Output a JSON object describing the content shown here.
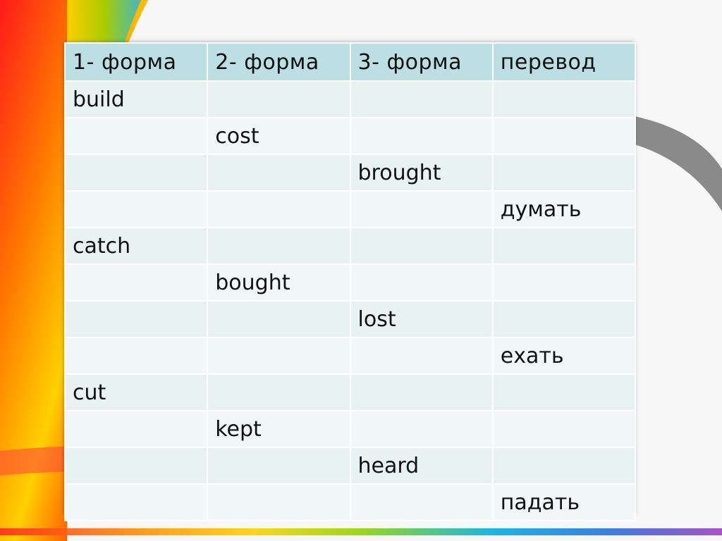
{
  "colors": {
    "header_bg": "#bcdfe3",
    "row_bg": "#e8f2f3",
    "row_alt_bg": "#f1f7f8",
    "text": "#111111"
  },
  "table": {
    "headers": [
      "1- форма",
      "2- форма",
      "3- форма",
      "перевод"
    ],
    "rows": [
      [
        "build",
        "",
        "",
        ""
      ],
      [
        "",
        "cost",
        "",
        ""
      ],
      [
        "",
        "",
        "brought",
        ""
      ],
      [
        "",
        "",
        "",
        "думать"
      ],
      [
        "catch",
        "",
        "",
        ""
      ],
      [
        "",
        "bought",
        "",
        ""
      ],
      [
        "",
        "",
        "lost",
        ""
      ],
      [
        "",
        "",
        "",
        "ехать"
      ],
      [
        "cut",
        "",
        "",
        ""
      ],
      [
        "",
        "kept",
        "",
        ""
      ],
      [
        "",
        "",
        "heard",
        ""
      ],
      [
        "",
        "",
        "",
        "падать"
      ]
    ]
  }
}
